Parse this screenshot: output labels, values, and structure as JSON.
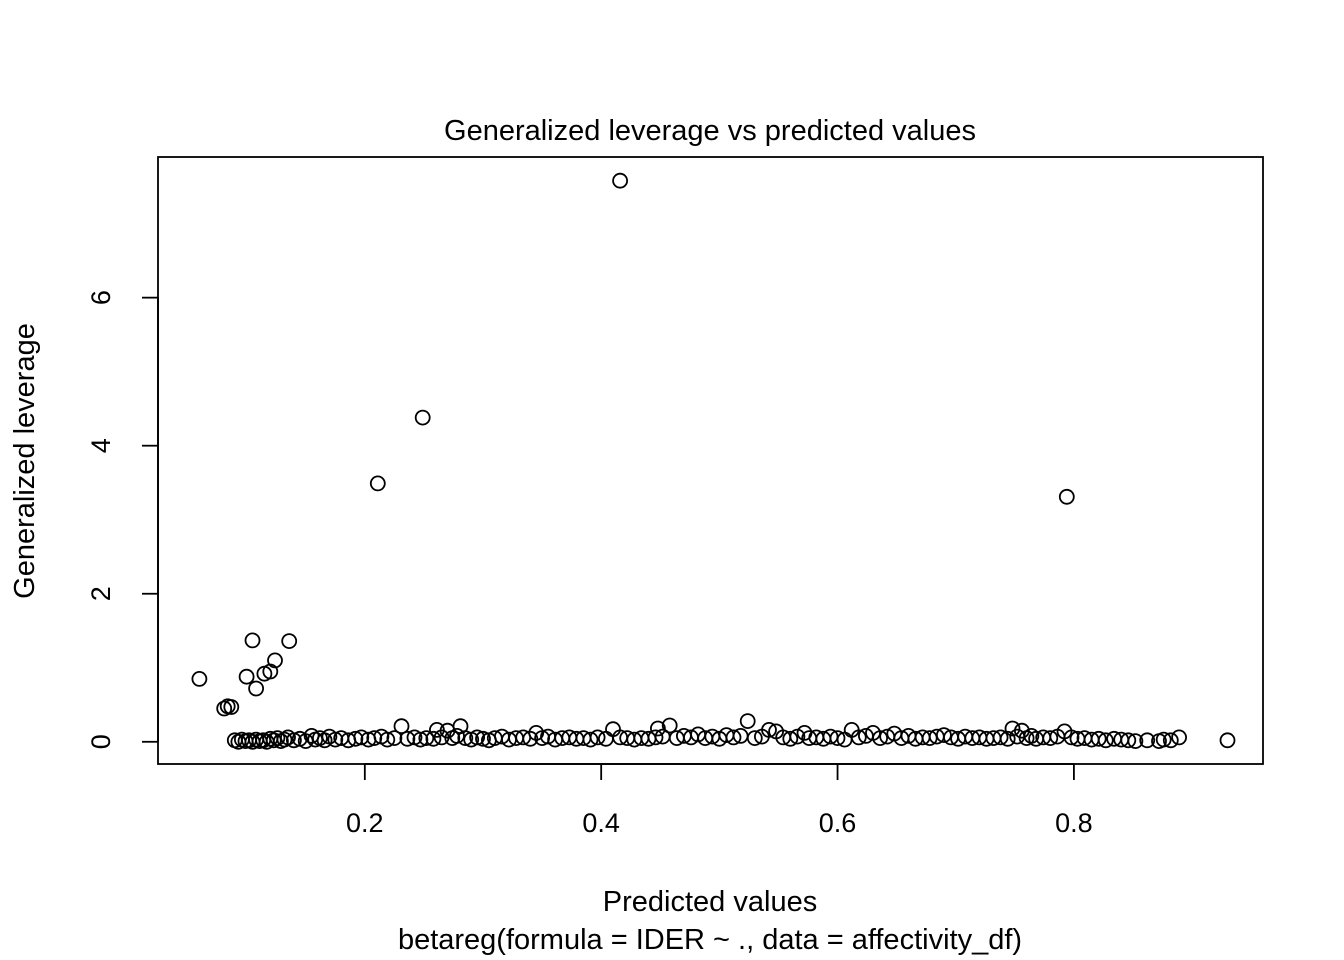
{
  "chart_data": {
    "type": "scatter",
    "title": "Generalized leverage vs predicted values",
    "xlabel": "Predicted values",
    "subtitle": "betareg(formula = IDER ~ ., data = affectivity_df)",
    "ylabel": "Generalized leverage",
    "xlim": [
      0.025,
      0.96
    ],
    "ylim": [
      -0.3,
      7.9
    ],
    "x_ticks": [
      0.2,
      0.4,
      0.6,
      0.8
    ],
    "x_tick_labels": [
      "0.2",
      "0.4",
      "0.6",
      "0.8"
    ],
    "y_ticks": [
      0,
      2,
      4,
      6
    ],
    "y_tick_labels": [
      "0",
      "2",
      "4",
      "6"
    ],
    "grid": false,
    "legend": "none",
    "points": [
      [
        0.416,
        7.58
      ],
      [
        0.249,
        4.38
      ],
      [
        0.211,
        3.49
      ],
      [
        0.794,
        3.31
      ],
      [
        0.105,
        1.37
      ],
      [
        0.136,
        1.36
      ],
      [
        0.124,
        1.1
      ],
      [
        0.12,
        0.95
      ],
      [
        0.115,
        0.92
      ],
      [
        0.1,
        0.88
      ],
      [
        0.06,
        0.85
      ],
      [
        0.108,
        0.72
      ],
      [
        0.087,
        0.47
      ],
      [
        0.084,
        0.48
      ],
      [
        0.081,
        0.45
      ],
      [
        0.09,
        0.02
      ],
      [
        0.093,
        0.0
      ],
      [
        0.096,
        0.03
      ],
      [
        0.099,
        0.01
      ],
      [
        0.102,
        0.02
      ],
      [
        0.105,
        0.0
      ],
      [
        0.108,
        0.03
      ],
      [
        0.111,
        0.01
      ],
      [
        0.114,
        0.02
      ],
      [
        0.117,
        0.0
      ],
      [
        0.12,
        0.04
      ],
      [
        0.123,
        0.02
      ],
      [
        0.126,
        0.05
      ],
      [
        0.129,
        0.01
      ],
      [
        0.132,
        0.03
      ],
      [
        0.135,
        0.06
      ],
      [
        0.14,
        0.02
      ],
      [
        0.145,
        0.04
      ],
      [
        0.15,
        0.01
      ],
      [
        0.155,
        0.08
      ],
      [
        0.158,
        0.03
      ],
      [
        0.162,
        0.05
      ],
      [
        0.166,
        0.02
      ],
      [
        0.17,
        0.07
      ],
      [
        0.175,
        0.03
      ],
      [
        0.18,
        0.05
      ],
      [
        0.186,
        0.02
      ],
      [
        0.192,
        0.04
      ],
      [
        0.197,
        0.06
      ],
      [
        0.203,
        0.03
      ],
      [
        0.208,
        0.05
      ],
      [
        0.214,
        0.07
      ],
      [
        0.219,
        0.03
      ],
      [
        0.225,
        0.05
      ],
      [
        0.231,
        0.21
      ],
      [
        0.236,
        0.04
      ],
      [
        0.242,
        0.06
      ],
      [
        0.247,
        0.03
      ],
      [
        0.252,
        0.05
      ],
      [
        0.258,
        0.04
      ],
      [
        0.261,
        0.16
      ],
      [
        0.265,
        0.06
      ],
      [
        0.27,
        0.15
      ],
      [
        0.274,
        0.05
      ],
      [
        0.278,
        0.08
      ],
      [
        0.281,
        0.21
      ],
      [
        0.285,
        0.05
      ],
      [
        0.29,
        0.03
      ],
      [
        0.295,
        0.06
      ],
      [
        0.3,
        0.04
      ],
      [
        0.305,
        0.02
      ],
      [
        0.31,
        0.05
      ],
      [
        0.316,
        0.07
      ],
      [
        0.322,
        0.03
      ],
      [
        0.328,
        0.05
      ],
      [
        0.334,
        0.06
      ],
      [
        0.34,
        0.04
      ],
      [
        0.345,
        0.12
      ],
      [
        0.35,
        0.05
      ],
      [
        0.355,
        0.07
      ],
      [
        0.361,
        0.03
      ],
      [
        0.367,
        0.05
      ],
      [
        0.373,
        0.06
      ],
      [
        0.379,
        0.04
      ],
      [
        0.385,
        0.05
      ],
      [
        0.391,
        0.03
      ],
      [
        0.397,
        0.06
      ],
      [
        0.404,
        0.04
      ],
      [
        0.41,
        0.17
      ],
      [
        0.416,
        0.06
      ],
      [
        0.422,
        0.05
      ],
      [
        0.428,
        0.03
      ],
      [
        0.434,
        0.05
      ],
      [
        0.44,
        0.04
      ],
      [
        0.446,
        0.06
      ],
      [
        0.448,
        0.18
      ],
      [
        0.452,
        0.07
      ],
      [
        0.458,
        0.22
      ],
      [
        0.464,
        0.05
      ],
      [
        0.47,
        0.08
      ],
      [
        0.476,
        0.06
      ],
      [
        0.482,
        0.1
      ],
      [
        0.488,
        0.05
      ],
      [
        0.494,
        0.07
      ],
      [
        0.5,
        0.04
      ],
      [
        0.506,
        0.09
      ],
      [
        0.512,
        0.06
      ],
      [
        0.518,
        0.08
      ],
      [
        0.524,
        0.28
      ],
      [
        0.53,
        0.05
      ],
      [
        0.536,
        0.07
      ],
      [
        0.542,
        0.16
      ],
      [
        0.548,
        0.14
      ],
      [
        0.554,
        0.06
      ],
      [
        0.56,
        0.04
      ],
      [
        0.566,
        0.07
      ],
      [
        0.572,
        0.12
      ],
      [
        0.576,
        0.05
      ],
      [
        0.582,
        0.06
      ],
      [
        0.588,
        0.04
      ],
      [
        0.594,
        0.07
      ],
      [
        0.6,
        0.05
      ],
      [
        0.606,
        0.03
      ],
      [
        0.612,
        0.16
      ],
      [
        0.618,
        0.06
      ],
      [
        0.624,
        0.08
      ],
      [
        0.63,
        0.12
      ],
      [
        0.636,
        0.05
      ],
      [
        0.642,
        0.07
      ],
      [
        0.648,
        0.11
      ],
      [
        0.654,
        0.05
      ],
      [
        0.66,
        0.08
      ],
      [
        0.666,
        0.04
      ],
      [
        0.672,
        0.06
      ],
      [
        0.678,
        0.05
      ],
      [
        0.684,
        0.07
      ],
      [
        0.69,
        0.09
      ],
      [
        0.696,
        0.06
      ],
      [
        0.702,
        0.04
      ],
      [
        0.708,
        0.07
      ],
      [
        0.714,
        0.05
      ],
      [
        0.72,
        0.06
      ],
      [
        0.726,
        0.04
      ],
      [
        0.732,
        0.05
      ],
      [
        0.738,
        0.06
      ],
      [
        0.744,
        0.04
      ],
      [
        0.748,
        0.18
      ],
      [
        0.752,
        0.07
      ],
      [
        0.756,
        0.15
      ],
      [
        0.76,
        0.05
      ],
      [
        0.764,
        0.08
      ],
      [
        0.768,
        0.04
      ],
      [
        0.774,
        0.06
      ],
      [
        0.78,
        0.05
      ],
      [
        0.786,
        0.07
      ],
      [
        0.792,
        0.14
      ],
      [
        0.798,
        0.06
      ],
      [
        0.803,
        0.04
      ],
      [
        0.809,
        0.05
      ],
      [
        0.815,
        0.03
      ],
      [
        0.821,
        0.04
      ],
      [
        0.827,
        0.02
      ],
      [
        0.834,
        0.04
      ],
      [
        0.84,
        0.03
      ],
      [
        0.846,
        0.02
      ],
      [
        0.852,
        0.01
      ],
      [
        0.862,
        0.02
      ],
      [
        0.872,
        0.01
      ],
      [
        0.876,
        0.03
      ],
      [
        0.882,
        0.02
      ],
      [
        0.889,
        0.06
      ],
      [
        0.93,
        0.02
      ]
    ]
  }
}
